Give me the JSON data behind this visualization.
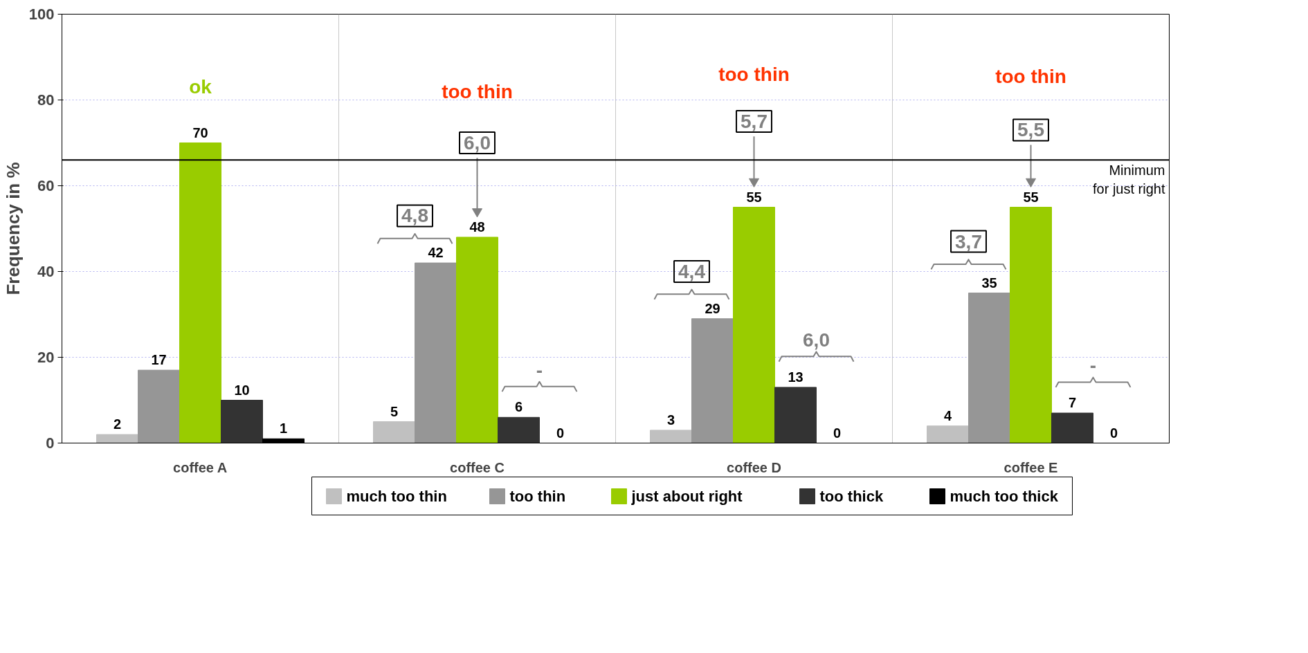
{
  "chart_data": {
    "type": "bar",
    "ylabel": "Frequency in %",
    "categories": [
      "coffee A",
      "coffee C",
      "coffee D",
      "coffee E"
    ],
    "series": [
      {
        "name": "much too thin",
        "color": "#c0c0c0",
        "values": [
          2,
          5,
          3,
          4
        ]
      },
      {
        "name": "too thin",
        "color": "#969696",
        "values": [
          17,
          42,
          29,
          35
        ]
      },
      {
        "name": "just about right",
        "color": "#99cc00",
        "values": [
          70,
          48,
          55,
          55
        ]
      },
      {
        "name": "too thick",
        "color": "#333333",
        "values": [
          10,
          6,
          13,
          7
        ]
      },
      {
        "name": "much too thick",
        "color": "#000000",
        "values": [
          1,
          0,
          0,
          0
        ]
      }
    ],
    "ylim": [
      0,
      100
    ],
    "yticks": [
      0,
      20,
      40,
      60,
      80,
      100
    ],
    "grid": true,
    "legend": "bottom",
    "data_labels": true,
    "ref_lines": [
      {
        "axis": "y",
        "value": 66,
        "label": "Minimum\nfor just right",
        "color": "#000000"
      }
    ],
    "annotations": [
      "ok",
      "too thin",
      "too thin",
      "too thin",
      "6,0",
      "4,8",
      "-",
      "5,7",
      "4,4",
      "6,0",
      "5,5",
      "3,7",
      "-"
    ]
  }
}
